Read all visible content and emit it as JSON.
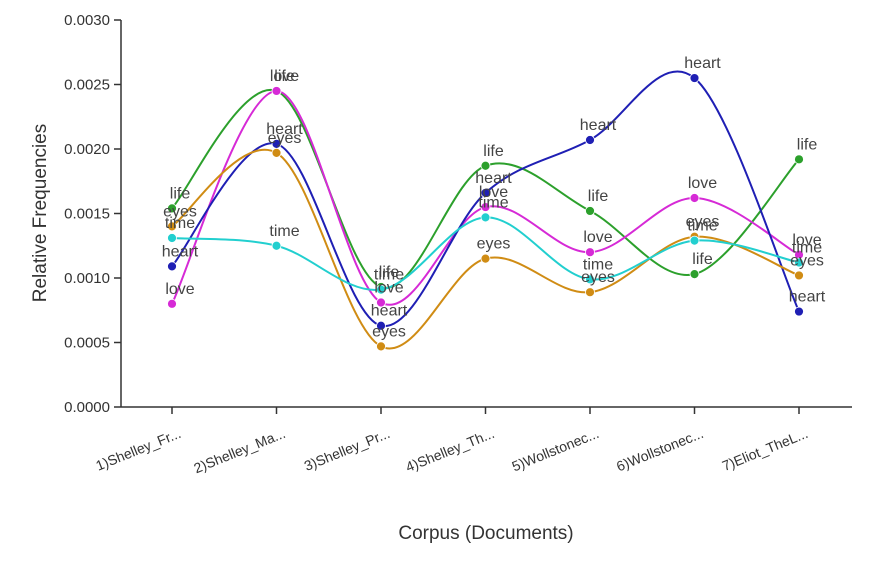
{
  "chart_data": {
    "type": "line",
    "xlabel": "Corpus (Documents)",
    "ylabel": "Relative Frequencies",
    "ylim": [
      0,
      0.003
    ],
    "y_ticks": [
      "0.0000",
      "0.0005",
      "0.0010",
      "0.0015",
      "0.0020",
      "0.0025",
      "0.0030"
    ],
    "grid": false,
    "legend": "none",
    "categories": [
      "1)Shelley_Fr...",
      "2)Shelley_Ma...",
      "3)Shelley_Pr...",
      "4)Shelley_Th...",
      "5)Wollstonec...",
      "6)Wollstonec...",
      "7)Eliot_TheL..."
    ],
    "series": [
      {
        "name": "life",
        "color": "#2ca02c",
        "values": [
          0.00154,
          0.00245,
          0.00093,
          0.00187,
          0.00152,
          0.00103,
          0.00192
        ]
      },
      {
        "name": "love",
        "color": "#d62ad6",
        "values": [
          0.0008,
          0.00245,
          0.00081,
          0.00155,
          0.0012,
          0.00162,
          0.00118
        ]
      },
      {
        "name": "heart",
        "color": "#1f1fb4",
        "values": [
          0.00109,
          0.00204,
          0.00063,
          0.00166,
          0.00207,
          0.00255,
          0.00074
        ]
      },
      {
        "name": "eyes",
        "color": "#d08c14",
        "values": [
          0.0014,
          0.00197,
          0.00047,
          0.00115,
          0.00089,
          0.00132,
          0.00102
        ]
      },
      {
        "name": "time",
        "color": "#22cfcf",
        "values": [
          0.00131,
          0.00125,
          0.00091,
          0.00147,
          0.00099,
          0.00129,
          0.00112
        ]
      }
    ]
  }
}
